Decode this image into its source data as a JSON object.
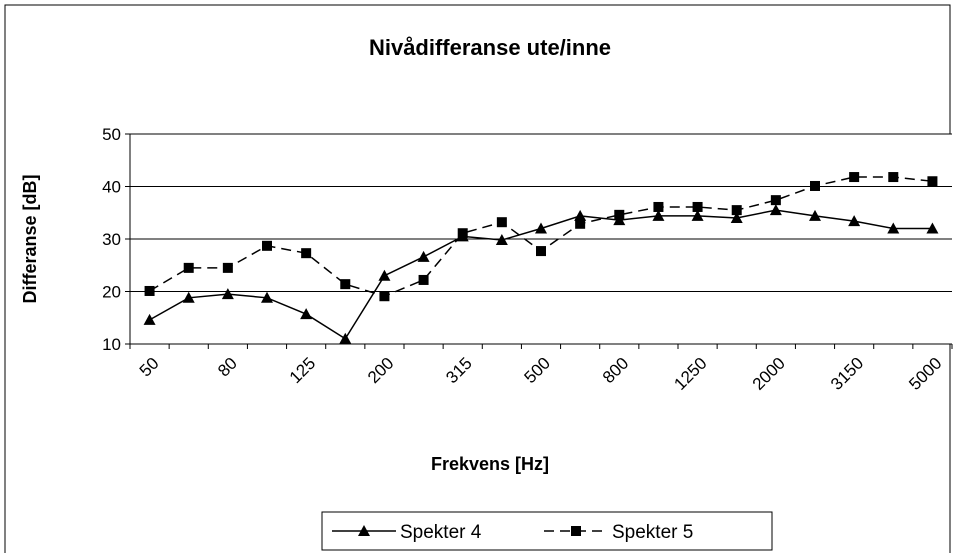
{
  "chart_data": {
    "type": "line",
    "title": "Nivådifferanse ute/inne",
    "x_label": "Frekvens [Hz]",
    "y_label": "Differanse [dB]",
    "categories": [
      "50",
      null,
      "80",
      null,
      "125",
      null,
      "200",
      null,
      "315",
      null,
      "500",
      null,
      "800",
      null,
      "1250",
      null,
      "2000",
      null,
      "3150",
      null,
      "5000"
    ],
    "series": [
      {
        "name": "Spekter 4",
        "color": "#000000",
        "line_style": "solid",
        "marker": "triangle",
        "values": [
          14.6,
          18.8,
          19.5,
          18.8,
          15.7,
          11,
          23,
          26.6,
          30.5,
          29.8,
          32,
          34.4,
          33.6,
          34.4,
          34.4,
          34,
          35.5,
          34.4,
          33.4,
          32,
          32
        ]
      },
      {
        "name": "Spekter 5",
        "color": "#000000",
        "line_style": "dashed",
        "marker": "square",
        "values": [
          20.1,
          24.5,
          24.5,
          28.7,
          27.3,
          21.4,
          19.1,
          22.2,
          31.1,
          33.2,
          27.7,
          32.9,
          34.6,
          36.1,
          36.1,
          35.5,
          37.4,
          40.1,
          41.8,
          41.8,
          41
        ]
      }
    ],
    "ylim": [
      10,
      50
    ],
    "yticks": [
      10,
      20,
      30,
      40,
      50
    ],
    "grid": true,
    "legend": "bottom"
  }
}
